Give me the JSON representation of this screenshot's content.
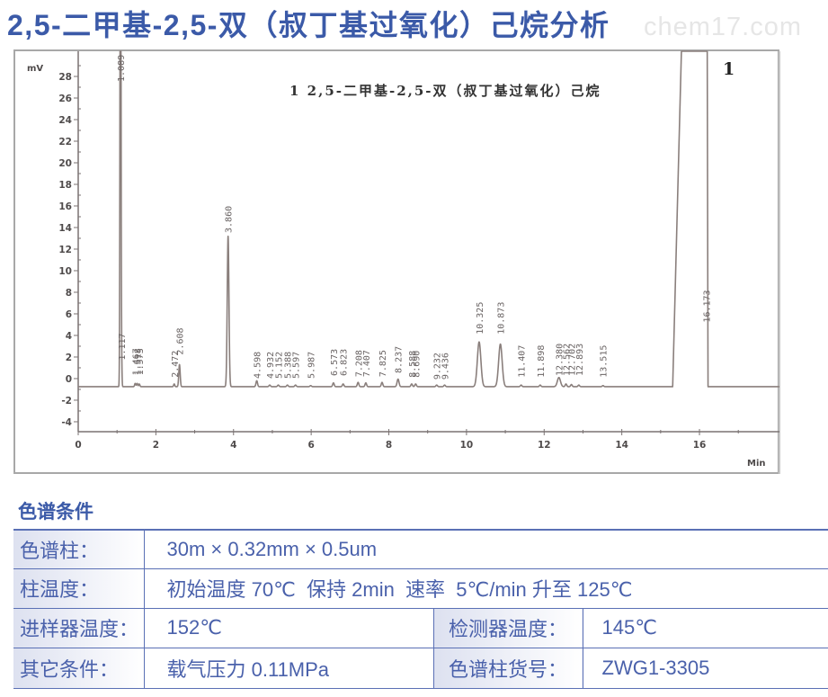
{
  "header": {
    "title": "2,5-二甲基-2,5-双（叔丁基过氧化）己烷分析",
    "watermark": "chem17.com"
  },
  "chart_data": {
    "type": "line",
    "title": "",
    "xlabel": "Min",
    "ylabel": "mV",
    "annotation": "1 2,5-二甲基-2,5-双（叔丁基过氧化）己烷",
    "peak_number_marker": "1",
    "xlim": [
      0,
      18.06
    ],
    "ylim": [
      -4.92,
      30.5
    ],
    "x_ticks": [
      0,
      2,
      4,
      6,
      8,
      10,
      12,
      14,
      16
    ],
    "x_minor_ticks": [
      1,
      3,
      5,
      7,
      9,
      11,
      13,
      15,
      17
    ],
    "y_ticks": [
      -4,
      -2,
      0,
      2,
      4,
      6,
      8,
      10,
      12,
      14,
      16,
      18,
      20,
      22,
      24,
      26,
      28
    ],
    "y_minor_ticks": [
      -3,
      -1,
      1,
      3,
      5,
      7,
      9,
      11,
      13,
      15,
      17,
      19,
      21,
      23,
      25,
      27,
      29
    ],
    "grid": false,
    "legend": "none",
    "baseline_mv": -0.75,
    "series": [
      {
        "name": "chromatogram",
        "peaks": [
          {
            "rt": 1.089,
            "label": "1.089",
            "apex_mv": 60,
            "width": 0.012,
            "label_mv": 27.5
          },
          {
            "rt": 1.117,
            "label": "1.117",
            "apex_mv": 1.5,
            "width": 0.01,
            "label_mv": 1.7
          },
          {
            "rt": 1.467,
            "label": "1.467",
            "apex_mv": -0.45,
            "width": 0.015,
            "label_mv": 0.3
          },
          {
            "rt": 1.518,
            "label": "1.518",
            "apex_mv": -0.45,
            "width": 0.015,
            "label_mv": 0.3
          },
          {
            "rt": 1.573,
            "label": "1.573",
            "apex_mv": -0.5,
            "width": 0.015,
            "label_mv": 0.3
          },
          {
            "rt": 2.472,
            "label": "2.472",
            "apex_mv": -0.5,
            "width": 0.015,
            "label_mv": 0.1
          },
          {
            "rt": 2.608,
            "label": "2.608",
            "apex_mv": 1.3,
            "width": 0.018,
            "label_mv": 2.2
          },
          {
            "rt": 3.86,
            "label": "3.860",
            "apex_mv": 13.2,
            "width": 0.022,
            "label_mv": 13.5
          },
          {
            "rt": 4.598,
            "label": "4.598",
            "apex_mv": -0.2,
            "width": 0.02,
            "label_mv": 0.0
          },
          {
            "rt": 4.932,
            "label": "4.932",
            "apex_mv": -0.6,
            "width": 0.02,
            "label_mv": 0.0
          },
          {
            "rt": 5.152,
            "label": "5.152",
            "apex_mv": -0.6,
            "width": 0.02,
            "label_mv": 0.0
          },
          {
            "rt": 5.388,
            "label": "5.388",
            "apex_mv": -0.6,
            "width": 0.02,
            "label_mv": 0.0
          },
          {
            "rt": 5.597,
            "label": "5.597",
            "apex_mv": -0.6,
            "width": 0.02,
            "label_mv": 0.0
          },
          {
            "rt": 5.987,
            "label": "5.987",
            "apex_mv": -0.65,
            "width": 0.02,
            "label_mv": 0.0
          },
          {
            "rt": 6.573,
            "label": "6.573",
            "apex_mv": -0.4,
            "width": 0.02,
            "label_mv": 0.25
          },
          {
            "rt": 6.823,
            "label": "6.823",
            "apex_mv": -0.5,
            "width": 0.02,
            "label_mv": 0.25
          },
          {
            "rt": 7.208,
            "label": "7.208",
            "apex_mv": -0.35,
            "width": 0.02,
            "label_mv": 0.15
          },
          {
            "rt": 7.407,
            "label": "7.407",
            "apex_mv": -0.4,
            "width": 0.02,
            "label_mv": 0.15
          },
          {
            "rt": 7.825,
            "label": "7.825",
            "apex_mv": -0.35,
            "width": 0.02,
            "label_mv": 0.15
          },
          {
            "rt": 8.237,
            "label": "8.237",
            "apex_mv": -0.05,
            "width": 0.025,
            "label_mv": 0.5
          },
          {
            "rt": 8.588,
            "label": "8.588",
            "apex_mv": -0.5,
            "width": 0.02,
            "label_mv": 0.1
          },
          {
            "rt": 8.69,
            "label": "8.690",
            "apex_mv": -0.5,
            "width": 0.02,
            "label_mv": 0.1
          },
          {
            "rt": 9.232,
            "label": "9.232",
            "apex_mv": -0.6,
            "width": 0.02,
            "label_mv": -0.1
          },
          {
            "rt": 9.436,
            "label": "9.436",
            "apex_mv": -0.6,
            "width": 0.02,
            "label_mv": -0.1
          },
          {
            "rt": 10.325,
            "label": "10.325",
            "apex_mv": 3.4,
            "width": 0.045,
            "label_mv": 4.1
          },
          {
            "rt": 10.873,
            "label": "10.873",
            "apex_mv": 3.2,
            "width": 0.045,
            "label_mv": 4.1
          },
          {
            "rt": 11.407,
            "label": "11.407",
            "apex_mv": -0.6,
            "width": 0.02,
            "label_mv": 0.1
          },
          {
            "rt": 11.898,
            "label": "11.898",
            "apex_mv": -0.6,
            "width": 0.02,
            "label_mv": 0.1
          },
          {
            "rt": 12.38,
            "label": "12.380",
            "apex_mv": 0.1,
            "width": 0.04,
            "label_mv": 0.25
          },
          {
            "rt": 12.562,
            "label": "12.562",
            "apex_mv": -0.5,
            "width": 0.02,
            "label_mv": 0.25
          },
          {
            "rt": 12.702,
            "label": "12.702",
            "apex_mv": -0.55,
            "width": 0.02,
            "label_mv": 0.25
          },
          {
            "rt": 12.893,
            "label": "12.893",
            "apex_mv": -0.6,
            "width": 0.02,
            "label_mv": 0.25
          },
          {
            "rt": 13.515,
            "label": "13.515",
            "apex_mv": -0.65,
            "width": 0.02,
            "label_mv": 0.1
          },
          {
            "rt": 16.173,
            "label": "16.173",
            "type": "overload",
            "start": 15.31,
            "plateau_start": 15.54,
            "fall_start": 16.2,
            "end": 16.22,
            "apex_mv": 31,
            "label_mv": 5.2
          }
        ]
      }
    ]
  },
  "conditions": {
    "heading": "色谱条件",
    "rows": [
      {
        "label": "色谱柱：",
        "value": "30m × 0.32mm × 0.5um"
      },
      {
        "label": "柱温度：",
        "value": "初始温度 70℃  保持 2min  速率  5℃/min 升至 125℃"
      },
      {
        "label": "进样器温度：",
        "value": "152℃",
        "label2": "检测器温度：",
        "value2": "145℃"
      },
      {
        "label": "其它条件：",
        "value": "载气压力 0.11MPa",
        "label2": "色谱柱货号：",
        "value2": "ZWG1-3305"
      }
    ]
  },
  "colors": {
    "title": "#3b5aa8",
    "table-text": "#4a61ab",
    "table-border": "#5a70b5",
    "label-bg": "#dde1f0",
    "watermark": "#e6e6e6",
    "trace": "#8a7f7c",
    "axis": "#7a7272"
  }
}
